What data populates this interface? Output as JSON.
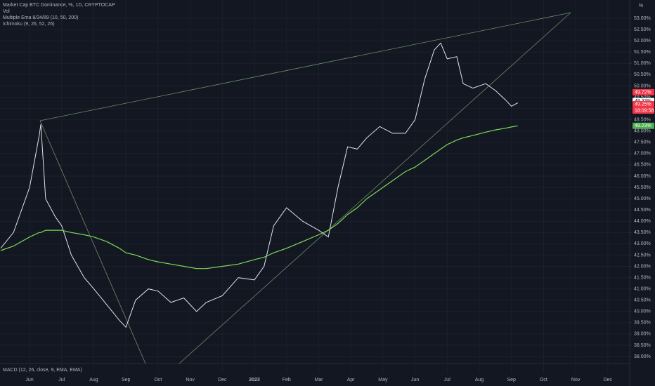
{
  "chart_data": {
    "type": "line",
    "axis_unit": "%",
    "xlim": [
      -0.92,
      18.66
    ],
    "xticks": [
      {
        "value": 0,
        "label": "Jun"
      },
      {
        "value": 1,
        "label": "Jul"
      },
      {
        "value": 2,
        "label": "Aug"
      },
      {
        "value": 3,
        "label": "Sep"
      },
      {
        "value": 4,
        "label": "Oct"
      },
      {
        "value": 5,
        "label": "Nov"
      },
      {
        "value": 6,
        "label": "Dec"
      },
      {
        "value": 7,
        "label": "2023"
      },
      {
        "value": 8,
        "label": "Feb"
      },
      {
        "value": 9,
        "label": "Mar"
      },
      {
        "value": 10,
        "label": "Apr"
      },
      {
        "value": 11,
        "label": "May"
      },
      {
        "value": 12,
        "label": "Jun"
      },
      {
        "value": 13,
        "label": "Jul"
      },
      {
        "value": 14,
        "label": "Aug"
      },
      {
        "value": 15,
        "label": "Sep"
      },
      {
        "value": 16,
        "label": "Oct"
      },
      {
        "value": 17,
        "label": "Nov"
      },
      {
        "value": 18,
        "label": "Dec"
      }
    ],
    "ylim": [
      37.69,
      53.81
    ],
    "yticks": [
      {
        "value": 38,
        "label": "38.00%"
      },
      {
        "value": 38.5,
        "label": "38.50%"
      },
      {
        "value": 39,
        "label": "39.00%"
      },
      {
        "value": 39.5,
        "label": "39.50%"
      },
      {
        "value": 40,
        "label": "40.00%"
      },
      {
        "value": 40.5,
        "label": "40.50%"
      },
      {
        "value": 41,
        "label": "41.00%"
      },
      {
        "value": 41.5,
        "label": "41.50%"
      },
      {
        "value": 42,
        "label": "42.00%"
      },
      {
        "value": 42.5,
        "label": "42.50%"
      },
      {
        "value": 43,
        "label": "43.00%"
      },
      {
        "value": 43.5,
        "label": "43.50%"
      },
      {
        "value": 44,
        "label": "44.00%"
      },
      {
        "value": 44.5,
        "label": "44.50%"
      },
      {
        "value": 45,
        "label": "45.00%"
      },
      {
        "value": 45.5,
        "label": "45.50%"
      },
      {
        "value": 46,
        "label": "46.00%"
      },
      {
        "value": 46.5,
        "label": "46.50%"
      },
      {
        "value": 47,
        "label": "47.00%"
      },
      {
        "value": 47.5,
        "label": "47.50%"
      },
      {
        "value": 48,
        "label": "48.00%"
      },
      {
        "value": 48.5,
        "label": "48.50%"
      },
      {
        "value": 49,
        "label": "49.00%"
      },
      {
        "value": 49.5,
        "label": "49.50%"
      },
      {
        "value": 50,
        "label": "50.00%"
      },
      {
        "value": 50.5,
        "label": "50.50%"
      },
      {
        "value": 51,
        "label": "51.00%"
      },
      {
        "value": 51.5,
        "label": "51.50%"
      },
      {
        "value": 52,
        "label": "52.00%"
      },
      {
        "value": 52.5,
        "label": "52.50%"
      },
      {
        "value": 53,
        "label": "53.00%"
      }
    ],
    "grid": true,
    "x": [
      -0.9,
      -0.5,
      0,
      0.3,
      0.35,
      0.5,
      0.8,
      1.0,
      1.3,
      1.7,
      2.0,
      2.4,
      2.8,
      3.0,
      3.3,
      3.7,
      4.0,
      4.4,
      4.8,
      5.2,
      5.5,
      6.0,
      6.5,
      7.0,
      7.3,
      7.6,
      8.0,
      8.5,
      9.0,
      9.3,
      9.6,
      9.9,
      10.2,
      10.5,
      10.9,
      11.3,
      11.7,
      12.0,
      12.3,
      12.6,
      12.8,
      13.0,
      13.3,
      13.5,
      13.8,
      14.2,
      14.5,
      14.8,
      15.0,
      15.2
    ],
    "series": [
      {
        "name": "Market Cap BTC Dominance, %, 1D, CRYPTOCAP",
        "color": "#e0e3eb",
        "values": [
          42.8,
          43.5,
          45.5,
          47.8,
          48.3,
          45.0,
          44.2,
          43.8,
          42.5,
          41.5,
          41.0,
          40.3,
          39.6,
          39.3,
          40.5,
          41.0,
          40.9,
          40.4,
          40.6,
          40.0,
          40.4,
          40.7,
          41.5,
          41.4,
          42.0,
          43.8,
          44.6,
          44.0,
          43.6,
          43.3,
          45.5,
          47.3,
          47.2,
          47.7,
          48.2,
          47.9,
          47.9,
          48.5,
          50.3,
          51.6,
          51.9,
          51.2,
          51.3,
          50.1,
          49.9,
          50.1,
          49.8,
          49.4,
          49.1,
          49.25
        ]
      },
      {
        "name": "Multiple Ema 8/34/89 (10, 50, 200)",
        "color": "#7ed957",
        "values": [
          42.7,
          42.9,
          43.3,
          43.5,
          43.5,
          43.6,
          43.6,
          43.6,
          43.5,
          43.4,
          43.3,
          43.1,
          42.8,
          42.6,
          42.5,
          42.3,
          42.2,
          42.1,
          42.0,
          41.9,
          41.9,
          42.0,
          42.1,
          42.3,
          42.4,
          42.6,
          42.8,
          43.1,
          43.4,
          43.6,
          43.9,
          44.3,
          44.6,
          45.0,
          45.4,
          45.8,
          46.2,
          46.4,
          46.7,
          47.0,
          47.2,
          47.4,
          47.6,
          47.7,
          47.8,
          47.95,
          48.05,
          48.12,
          48.18,
          48.23
        ]
      }
    ],
    "overlays": [
      "Vol",
      "Ichimoku (9, 26, 52, 26)"
    ],
    "pane_title": "MACD (12, 26, close, 9, EMA, EMA)",
    "price_labels": [
      {
        "value": 49.72,
        "label": "49.72%",
        "color": "#f23645"
      },
      {
        "value": 49.33,
        "label": "49.33%",
        "color": "#ffffff"
      },
      {
        "value": 49.25,
        "label": "49.25%",
        "color": "#f23645"
      },
      {
        "value": 48.23,
        "label": "48.23%",
        "color": "#4caf50"
      }
    ],
    "countdown": "18:09:58"
  }
}
